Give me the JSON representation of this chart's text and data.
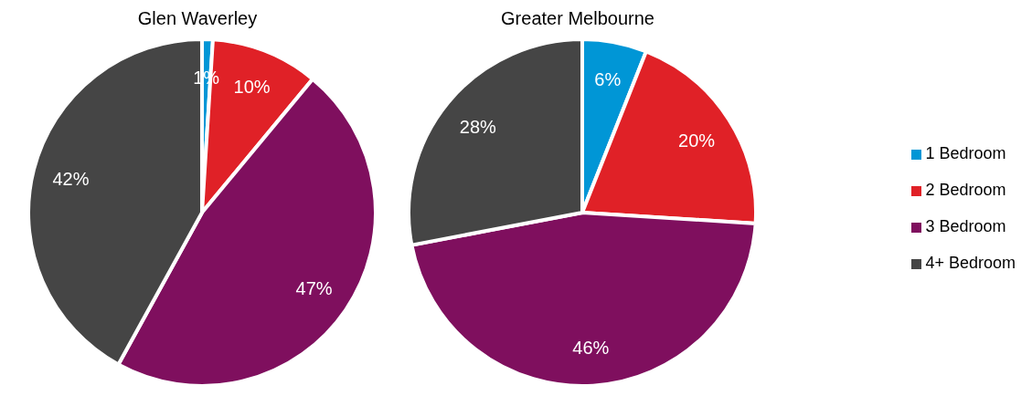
{
  "chart_data": [
    {
      "type": "pie",
      "title": "Glen Waverley",
      "categories": [
        null,
        null,
        null,
        null
      ],
      "values": [
        1,
        10,
        47,
        42
      ],
      "value_labels": [
        "1%",
        "10%",
        "47%",
        "42%"
      ],
      "colors": [
        "#0096d6",
        "#e02127",
        "#7f0f5e",
        "#454545"
      ],
      "legend": false
    },
    {
      "type": "pie",
      "title": "Greater Melbourne",
      "categories": [
        "1 Bedroom",
        "2 Bedroom",
        "3 Bedroom",
        "4+ Bedroom"
      ],
      "values": [
        6,
        20,
        46,
        28
      ],
      "value_labels": [
        "6%",
        "20%",
        "46%",
        "28%"
      ],
      "colors": [
        "#0096d6",
        "#e02127",
        "#7f0f5e",
        "#454545"
      ],
      "legend": "right"
    }
  ]
}
